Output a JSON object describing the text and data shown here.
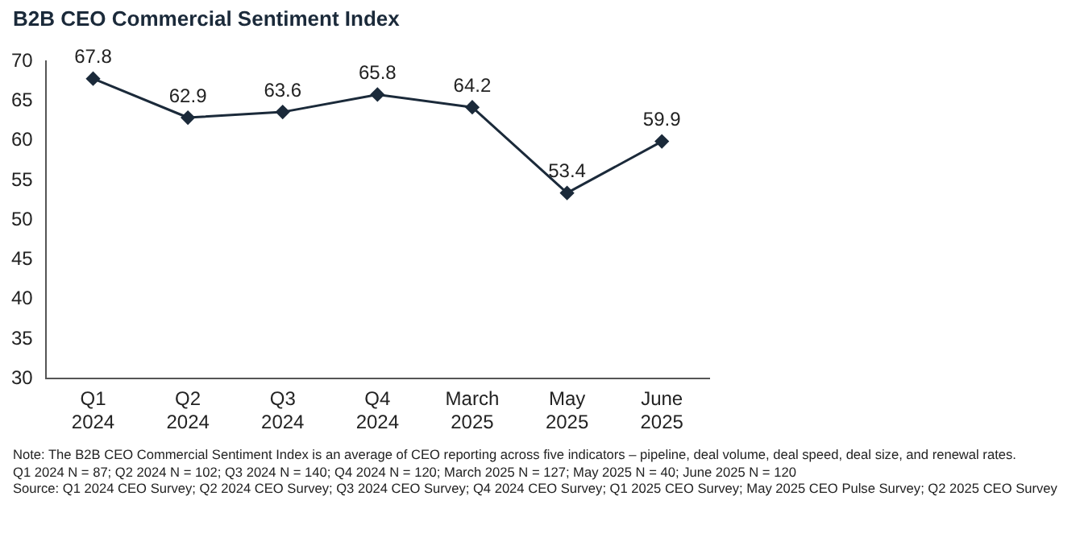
{
  "chart_data": {
    "type": "line",
    "title": "B2B CEO Commercial Sentiment Index",
    "categories": [
      "Q1 2024",
      "Q2 2024",
      "Q3 2024",
      "Q4 2024",
      "March 2025",
      "May 2025",
      "June 2025"
    ],
    "series": [
      {
        "color": "#1b2a3a",
        "values": [
          67.8,
          62.9,
          63.6,
          65.8,
          64.2,
          53.4,
          59.9
        ]
      }
    ],
    "ylim": [
      30,
      70
    ],
    "yticks": [
      30,
      35,
      40,
      45,
      50,
      55,
      60,
      65,
      70
    ],
    "grid": false,
    "legend": false,
    "marker": "diamond",
    "line_style": "solid",
    "data_labels": true,
    "annotations": [
      "Note: The B2B CEO Commercial Sentiment Index is an average of CEO reporting across five indicators – pipeline, deal volume, deal speed, deal size, and renewal rates.",
      "Q1 2024 N = 87; Q2 2024 N = 102; Q3 2024 N = 140; Q4 2024 N = 120; March 2025 N = 127; May 2025 N = 40; June 2025 N = 120",
      "Source: Q1 2024 CEO Survey; Q2 2024 CEO Survey; Q3 2024 CEO Survey; Q4 2024 CEO Survey; Q1 2025 CEO Survey; May 2025 CEO Pulse Survey; Q2 2025 CEO Survey"
    ]
  }
}
